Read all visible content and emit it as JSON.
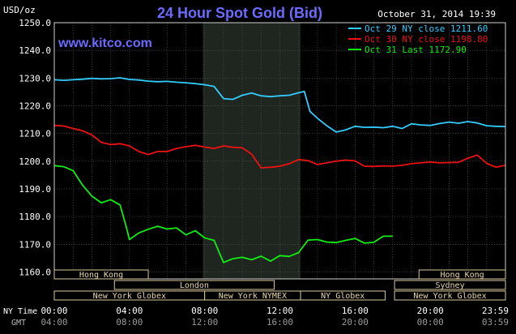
{
  "header": {
    "title": "24 Hour Spot Gold (Bid)",
    "unit": "USD/oz",
    "timestamp": "October 31, 2014 19:39",
    "watermark": "www.kitco.com"
  },
  "chart_data": {
    "type": "line",
    "title": "24 Hour Spot Gold (Bid)",
    "ylabel": "USD/oz",
    "ylim": [
      1157.5,
      1250
    ],
    "xlim": [
      0,
      24
    ],
    "grid": true,
    "legend": "top-right",
    "y_ticks": [
      "1250.0",
      "1240.0",
      "1230.0",
      "1220.0",
      "1210.0",
      "1200.0",
      "1190.0",
      "1180.0",
      "1170.0",
      "1160.0"
    ],
    "x_ticks": [
      0,
      4,
      8,
      12,
      16,
      20,
      24
    ],
    "ny_time_label": "NY Time",
    "gmt_label": "GMT",
    "ny_time_ticks": [
      "00:00",
      "04:00",
      "08:00",
      "12:00",
      "16:00",
      "20:00",
      "23:59"
    ],
    "gmt_ticks": [
      "04:00",
      "08:00",
      "12:00",
      "16:00",
      "20:00",
      "00:00",
      "03:59"
    ],
    "shaded_session": [
      7.9,
      13.1
    ],
    "series": [
      {
        "name": "Oct 29 NY close 1211.60",
        "color": "#33ccff",
        "x": [
          0,
          0.5,
          1,
          1.5,
          2,
          2.5,
          3,
          3.5,
          4,
          4.5,
          5,
          5.5,
          6,
          6.5,
          7,
          7.5,
          8,
          8.5,
          9,
          9.5,
          10,
          10.5,
          11,
          11.5,
          12,
          12.5,
          13,
          13.3,
          13.6,
          14,
          14.5,
          15,
          15.5,
          16,
          16.5,
          17,
          17.5,
          18,
          18.5,
          19,
          19.5,
          20,
          20.5,
          21,
          21.5,
          22,
          22.5,
          23,
          23.5,
          24
        ],
        "values": [
          1229.4,
          1229.2,
          1229.4,
          1229.6,
          1229.9,
          1229.7,
          1229.8,
          1230.1,
          1229.5,
          1229.3,
          1228.9,
          1228.7,
          1228.8,
          1228.5,
          1228.3,
          1228.0,
          1227.6,
          1227.0,
          1222.6,
          1222.3,
          1223.8,
          1224.6,
          1223.6,
          1223.3,
          1223.6,
          1223.8,
          1224.7,
          1225.2,
          1218.0,
          1215.5,
          1212.8,
          1210.5,
          1211.3,
          1212.6,
          1212.2,
          1212.3,
          1212.1,
          1212.6,
          1211.8,
          1213.5,
          1213.1,
          1212.9,
          1213.6,
          1214.1,
          1213.7,
          1214.3,
          1213.8,
          1212.8,
          1212.6,
          1212.5
        ]
      },
      {
        "name": "Oct 30 NY close 1198.80",
        "color": "#ee1111",
        "x": [
          0,
          0.5,
          1,
          1.5,
          2,
          2.5,
          3,
          3.5,
          4,
          4.5,
          5,
          5.5,
          6,
          6.5,
          7,
          7.5,
          8,
          8.5,
          9,
          9.5,
          10,
          10.5,
          11,
          11.5,
          12,
          12.5,
          13,
          13.5,
          14,
          14.5,
          15,
          15.5,
          16,
          16.5,
          17,
          17.5,
          18,
          18.5,
          19,
          19.5,
          20,
          20.5,
          21,
          21.5,
          22,
          22.5,
          23,
          23.5,
          24
        ],
        "values": [
          1212.9,
          1212.7,
          1211.8,
          1211.0,
          1209.5,
          1206.8,
          1206.0,
          1206.3,
          1205.5,
          1203.5,
          1202.4,
          1203.5,
          1203.5,
          1204.6,
          1205.2,
          1205.7,
          1205.1,
          1204.6,
          1205.5,
          1205.0,
          1204.8,
          1202.5,
          1197.6,
          1197.8,
          1198.2,
          1199.1,
          1200.6,
          1200.2,
          1198.8,
          1199.4,
          1200.0,
          1200.4,
          1200.1,
          1198.2,
          1198.1,
          1198.3,
          1198.2,
          1198.5,
          1199.1,
          1199.4,
          1199.7,
          1199.4,
          1199.5,
          1199.6,
          1201.1,
          1202.2,
          1199.2,
          1197.8,
          1198.5
        ]
      },
      {
        "name": "Oct 31 Last 1172.90",
        "color": "#11ee11",
        "x": [
          0,
          0.5,
          1,
          1.5,
          2,
          2.5,
          3,
          3.5,
          3.8,
          4,
          4.5,
          5,
          5.5,
          6,
          6.5,
          7,
          7.5,
          8,
          8.5,
          9,
          9.5,
          10,
          10.5,
          11,
          11.5,
          12,
          12.5,
          13,
          13.5,
          14,
          14.5,
          15,
          15.5,
          16,
          16.5,
          17,
          17.5,
          18
        ],
        "values": [
          1198.4,
          1198.0,
          1196.6,
          1191.4,
          1187.4,
          1185.0,
          1186.1,
          1184.2,
          1177.0,
          1171.7,
          1174.1,
          1175.4,
          1176.5,
          1175.5,
          1175.9,
          1173.4,
          1174.9,
          1172.3,
          1171.4,
          1163.4,
          1164.8,
          1165.3,
          1164.4,
          1165.7,
          1163.9,
          1165.9,
          1165.6,
          1167.0,
          1171.5,
          1171.7,
          1170.8,
          1170.6,
          1171.4,
          1172.1,
          1170.4,
          1170.7,
          1172.9,
          1172.9
        ]
      }
    ]
  },
  "sessions": [
    {
      "label": "Hong Kong",
      "row": 0,
      "start": 0,
      "end": 5.0
    },
    {
      "label": "London",
      "row": 1,
      "start": 3.2,
      "end": 11.7
    },
    {
      "label": "New York Globex",
      "row": 2,
      "start": 0,
      "end": 8.0
    },
    {
      "label": "New York NYMEX",
      "row": 2,
      "start": 8.0,
      "end": 13.1
    },
    {
      "label": "NY Globex",
      "row": 2,
      "start": 13.1,
      "end": 17.6
    },
    {
      "label": "Hong Kong",
      "row": 0,
      "start": 19.4,
      "end": 24
    },
    {
      "label": "Sydney",
      "row": 1,
      "start": 18.1,
      "end": 24
    },
    {
      "label": "New York Globex",
      "row": 2,
      "start": 18.1,
      "end": 24
    }
  ]
}
